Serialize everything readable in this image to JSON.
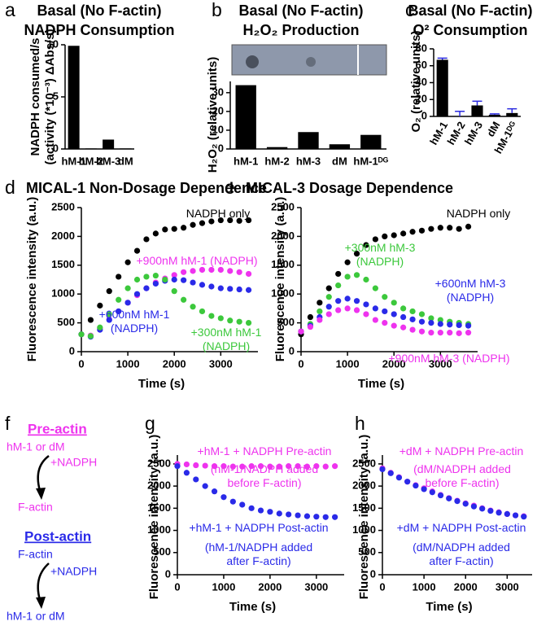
{
  "panel_letters": [
    "a",
    "b",
    "c",
    "d",
    "e",
    "f",
    "g",
    "h"
  ],
  "diagram": {
    "pre_title": "Pre-actin",
    "pre_start": "hM-1 or dM",
    "pre_reagent": "+NADPH",
    "pre_end": "F-actin",
    "post_title": "Post-actin",
    "post_start": "F-actin",
    "post_reagent": "+NADPH",
    "post_end": "hM-1 or dM"
  },
  "chart_data": [
    {
      "type": "bar",
      "title": "Basal (No F-actin)",
      "subtitle": "NADPH Consumption",
      "ylabel": "NADPH consumed/s",
      "ylabel2": "(activity (*10⁻³) ΔAbs/s)",
      "categories": [
        "hM-1",
        "hM-2",
        "hM-3",
        "dM"
      ],
      "values": [
        9.9,
        0.05,
        0.9,
        0.05
      ],
      "color": "#000000",
      "ylim": [
        0,
        10
      ],
      "yticks": [
        0,
        5,
        10
      ]
    },
    {
      "type": "bar",
      "title": "Basal (No F-actin)",
      "subtitle": "H₂O₂ Production",
      "ylabel": "H₂O₂ (relative units)",
      "categories": [
        "hM-1",
        "hM-2",
        "hM-3",
        "dM",
        "hM-1ᴰᴳ"
      ],
      "values": [
        34,
        1,
        9,
        2.5,
        7.5
      ],
      "color": "#000000",
      "ylim": [
        0,
        36
      ],
      "yticks": [
        0,
        10,
        20,
        30
      ]
    },
    {
      "type": "bar",
      "title": "Basal (No F-actin)",
      "subtitle": "O² Consumption",
      "ylabel": "O₂ (relative units)",
      "categories": [
        "hM-1",
        "hM-2",
        "hM-3",
        "dM",
        "hM-1ᴰᴳ"
      ],
      "values": [
        67,
        0,
        13,
        2,
        4
      ],
      "errors": [
        2,
        6,
        5,
        1,
        5
      ],
      "color": "#000000",
      "error_color": "#2a2ae0",
      "ylim": [
        0,
        80
      ],
      "yticks": [
        0,
        20,
        40,
        60,
        80
      ]
    },
    {
      "type": "scatter",
      "title": "MICAL-1 Non-Dosage Dependence",
      "xlabel": "Time (s)",
      "ylabel": "Fluorescence intensity (a.u.)",
      "x": [
        0,
        200,
        400,
        600,
        800,
        1000,
        1200,
        1400,
        1600,
        1800,
        2000,
        2200,
        2400,
        2600,
        2800,
        3000,
        3200,
        3400,
        3600
      ],
      "xlim": [
        0,
        3800
      ],
      "xticks": [
        0,
        1000,
        2000,
        3000
      ],
      "ylim": [
        0,
        2500
      ],
      "yticks": [
        0,
        500,
        1000,
        1500,
        2000,
        2500
      ],
      "series": [
        {
          "name": "NADPH only",
          "color": "#000000",
          "values": [
            300,
            550,
            800,
            1050,
            1300,
            1550,
            1750,
            1950,
            2050,
            2120,
            2130,
            2150,
            2200,
            2230,
            2260,
            2280,
            2280,
            2270,
            2280
          ]
        },
        {
          "name": "+900nM hM-1 (NADPH)",
          "color": "#ee33ee",
          "values": [
            300,
            280,
            400,
            560,
            700,
            850,
            980,
            1100,
            1200,
            1270,
            1330,
            1380,
            1400,
            1420,
            1420,
            1420,
            1400,
            1380,
            1350
          ]
        },
        {
          "name": "+600nM hM-1 (NADPH)",
          "color": "#2a2ae8",
          "values": [
            300,
            260,
            380,
            550,
            700,
            850,
            1000,
            1100,
            1180,
            1230,
            1250,
            1240,
            1200,
            1160,
            1130,
            1100,
            1090,
            1080,
            1070
          ]
        },
        {
          "name": "+300nM hM-1 (NADPH)",
          "color": "#3cc83c",
          "values": [
            300,
            270,
            420,
            650,
            900,
            1100,
            1250,
            1300,
            1320,
            1250,
            1050,
            900,
            780,
            700,
            620,
            580,
            540,
            520,
            500
          ]
        }
      ]
    },
    {
      "type": "scatter",
      "title": "MICAL-3 Dosage Dependence",
      "xlabel": "Time (s)",
      "ylabel": "Fluorescence intensity (a.u.)",
      "x": [
        0,
        200,
        400,
        600,
        800,
        1000,
        1200,
        1400,
        1600,
        1800,
        2000,
        2200,
        2400,
        2600,
        2800,
        3000,
        3200,
        3400,
        3600
      ],
      "xlim": [
        0,
        3800
      ],
      "xticks": [
        0,
        1000,
        2000,
        3000
      ],
      "ylim": [
        0,
        2500
      ],
      "yticks": [
        0,
        500,
        1000,
        1500,
        2000,
        2500
      ],
      "series": [
        {
          "name": "NADPH only",
          "color": "#000000",
          "values": [
            300,
            600,
            850,
            1100,
            1350,
            1550,
            1700,
            1850,
            1950,
            2000,
            2020,
            2050,
            2080,
            2100,
            2130,
            2150,
            2150,
            2130,
            2170
          ]
        },
        {
          "name": "+300nM hM-3 (NADPH)",
          "color": "#3cc83c",
          "values": [
            350,
            480,
            700,
            950,
            1150,
            1300,
            1330,
            1250,
            1100,
            950,
            850,
            750,
            700,
            650,
            580,
            550,
            520,
            500,
            480
          ]
        },
        {
          "name": "+600nM hM-3 (NADPH)",
          "color": "#2a2ae8",
          "values": [
            350,
            450,
            600,
            780,
            880,
            920,
            880,
            820,
            750,
            700,
            650,
            600,
            560,
            520,
            500,
            480,
            470,
            460,
            450
          ]
        },
        {
          "name": "+900nM hM-3 (NADPH)",
          "color": "#ee33ee",
          "values": [
            350,
            430,
            550,
            650,
            720,
            750,
            720,
            650,
            550,
            500,
            450,
            420,
            380,
            350,
            330,
            330,
            330,
            320,
            330
          ]
        }
      ]
    },
    {
      "type": "scatter",
      "xlabel": "Time (s)",
      "ylabel": "Fluorescence intensity (a.u.)",
      "x": [
        0,
        200,
        400,
        600,
        800,
        1000,
        1200,
        1400,
        1600,
        1800,
        2000,
        2200,
        2400,
        2600,
        2800,
        3000,
        3200,
        3400
      ],
      "xlim": [
        0,
        3600
      ],
      "xticks": [
        0,
        1000,
        2000,
        3000
      ],
      "ylim": [
        0,
        2700
      ],
      "yticks": [
        0,
        500,
        1000,
        1500,
        2000,
        2500
      ],
      "series": [
        {
          "name": "+hM-1 + NADPH Pre-actin",
          "note": "(hM-1/NADPH added before F-actin)",
          "color": "#ee33ee",
          "values": [
            2500,
            2490,
            2470,
            2460,
            2450,
            2450,
            2440,
            2440,
            2450,
            2450,
            2440,
            2440,
            2450,
            2450,
            2440,
            2450,
            2440,
            2450
          ]
        },
        {
          "name": "+hM-1 + NADPH Post-actin",
          "note": "(hM-1/NADPH added after F-actin)",
          "color": "#2a2ae8",
          "values": [
            2450,
            2300,
            2150,
            2000,
            1880,
            1750,
            1650,
            1580,
            1500,
            1450,
            1420,
            1380,
            1360,
            1340,
            1320,
            1310,
            1300,
            1300
          ]
        }
      ]
    },
    {
      "type": "scatter",
      "xlabel": "Time (s)",
      "ylabel": "Fluorescence intensity (a.u.)",
      "x": [
        0,
        200,
        400,
        600,
        800,
        1000,
        1200,
        1400,
        1600,
        1800,
        2000,
        2200,
        2400,
        2600,
        2800,
        3000,
        3200,
        3400
      ],
      "xlim": [
        0,
        3600
      ],
      "xticks": [
        0,
        1000,
        2000,
        3000
      ],
      "ylim": [
        0,
        2700
      ],
      "yticks": [
        0,
        500,
        1000,
        1500,
        2000,
        2500
      ],
      "series": [
        {
          "name": "+dM + NADPH Pre-actin",
          "note": "(dM/NADPH added before F-actin)",
          "color": "#ee33ee",
          "values": [
            2400,
            2300,
            2200,
            2100,
            2020,
            1950,
            1880,
            1800,
            1730,
            1670,
            1610,
            1560,
            1500,
            1450,
            1410,
            1370,
            1340,
            1320
          ]
        },
        {
          "name": "+dM + NADPH Post-actin",
          "note": "(dM/NADPH added after F-actin)",
          "color": "#2a2ae8",
          "values": [
            2380,
            2290,
            2190,
            2100,
            2010,
            1930,
            1860,
            1790,
            1720,
            1660,
            1600,
            1540,
            1490,
            1440,
            1400,
            1370,
            1340,
            1310
          ]
        }
      ]
    }
  ]
}
